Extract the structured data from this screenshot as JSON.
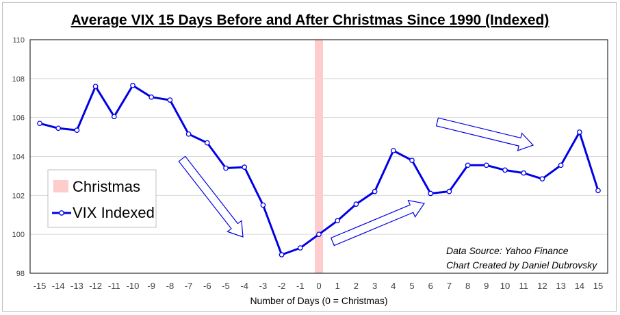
{
  "chart_data": {
    "type": "line",
    "title": "Average VIX 15 Days Before and After Christmas Since 1990 (Indexed)",
    "xlabel": "Number of Days (0 = Christmas)",
    "ylabel": "",
    "ylim": [
      98,
      110
    ],
    "yticks": [
      98,
      100,
      102,
      104,
      106,
      108,
      110
    ],
    "xlim": [
      -15,
      15
    ],
    "grid": "horizontal",
    "legend_placement": "left",
    "x": [
      -15,
      -14,
      -13,
      -12,
      -11,
      -10,
      -9,
      -8,
      -7,
      -6,
      -5,
      -4,
      -3,
      -2,
      -1,
      0,
      1,
      2,
      3,
      4,
      5,
      6,
      7,
      8,
      9,
      10,
      11,
      12,
      13,
      14,
      15
    ],
    "series": [
      {
        "name": "VIX Indexed",
        "color": "#0000e6",
        "values": [
          105.7,
          105.45,
          105.35,
          107.6,
          106.05,
          107.65,
          107.05,
          106.9,
          105.15,
          104.7,
          103.4,
          103.45,
          101.5,
          98.95,
          99.3,
          100.0,
          100.7,
          101.55,
          102.2,
          104.3,
          103.8,
          102.1,
          102.2,
          103.55,
          103.55,
          103.3,
          103.15,
          102.85,
          103.55,
          105.25,
          102.25
        ]
      }
    ],
    "highlight": {
      "name": "Christmas",
      "x": 0,
      "color": "#ffcccc"
    },
    "annotations": [
      "Data Source: Yahoo Finance",
      "Chart Created by Daniel Dubrovsky"
    ]
  }
}
